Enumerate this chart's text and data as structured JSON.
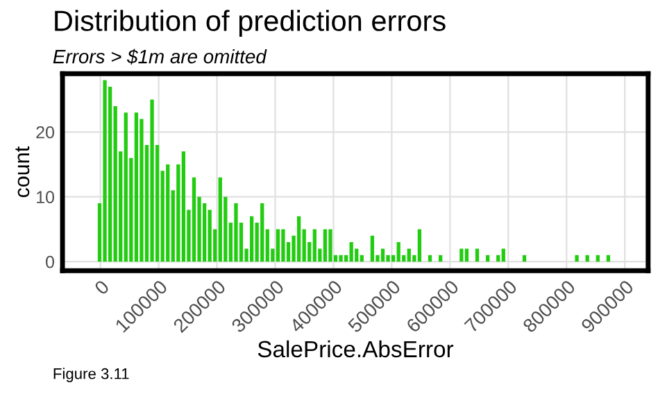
{
  "chart_data": {
    "type": "histogram",
    "title": "Distribution of prediction errors",
    "subtitle": "Errors > $1m are omitted",
    "xlabel": "SalePrice.AbsError",
    "ylabel": "count",
    "annotations": [
      "Figure 3.11"
    ],
    "bins": [
      -4500,
      4500,
      13500,
      22500,
      31500,
      40500,
      49500,
      58500,
      67500,
      76500,
      85500,
      94500,
      103500,
      112500,
      121500,
      130500,
      139500,
      148500,
      157500,
      166500,
      175500,
      184500,
      193500,
      202500,
      211500,
      220500,
      229500,
      238500,
      247500,
      256500,
      265500,
      274500,
      283500,
      292500,
      301500,
      310500,
      319500,
      328500,
      337500,
      346500,
      355500,
      364500,
      373500,
      382500,
      391500,
      400500,
      409500,
      418500,
      427500,
      436500,
      445500,
      454500,
      463500,
      472500,
      481500,
      490500,
      499500,
      508500,
      517500,
      526500,
      535500,
      544500,
      553500,
      562500,
      571500,
      580500,
      589500,
      598500,
      607500,
      616500,
      625500,
      634500,
      643500,
      652500,
      661500,
      670500,
      679500,
      688500,
      697500,
      706500,
      715500,
      724500,
      733500,
      742500,
      751500,
      760500,
      769500,
      778500,
      787500,
      796500,
      805500,
      814500,
      823500,
      832500,
      841500,
      850500,
      859500,
      868500,
      877500
    ],
    "values": [
      9,
      28,
      27,
      24,
      17,
      23,
      16,
      23,
      22,
      18,
      25,
      18,
      14,
      15,
      11,
      15,
      17,
      8,
      13,
      10,
      9,
      8,
      5,
      13,
      10,
      6,
      9,
      6,
      2,
      7,
      6,
      9,
      5,
      2,
      5,
      5,
      3,
      4,
      7,
      5,
      3,
      5,
      2,
      5,
      5,
      1,
      1,
      1,
      3,
      2,
      1,
      0,
      4,
      1,
      2,
      1,
      1,
      3,
      1,
      2,
      1,
      5,
      0,
      1,
      0,
      1,
      0,
      0,
      0,
      2,
      2,
      0,
      2,
      0,
      1,
      0,
      1,
      2,
      0,
      0,
      0,
      1,
      0,
      0,
      0,
      0,
      0,
      0,
      0,
      0,
      0,
      1,
      0,
      1,
      0,
      1,
      0,
      1
    ],
    "color": "#22cc11",
    "xlim": [
      -65000,
      940000
    ],
    "xticks": [
      0,
      100000,
      200000,
      300000,
      400000,
      500000,
      600000,
      700000,
      800000,
      900000
    ],
    "ylim": [
      -1.4,
      29
    ],
    "yticks": [
      0,
      10,
      20
    ],
    "grid": true
  }
}
